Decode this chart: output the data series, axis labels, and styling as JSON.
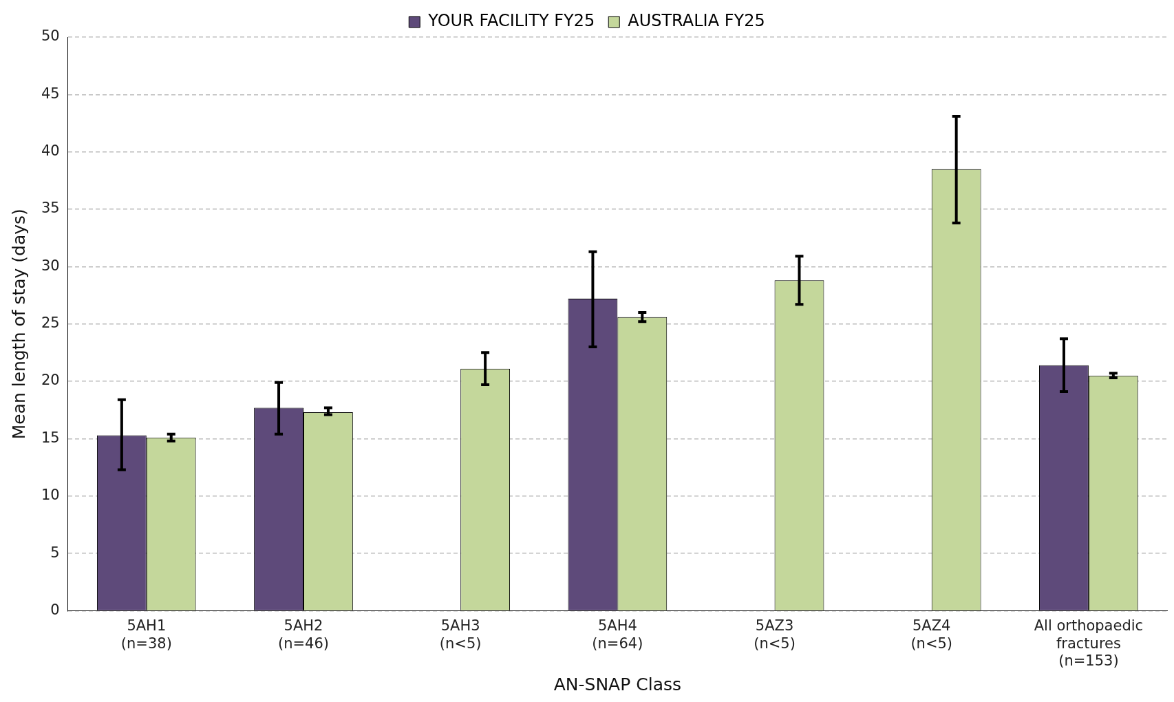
{
  "chart_data": {
    "type": "bar",
    "xlabel": "AN-SNAP Class",
    "ylabel": "Mean length of stay (days)",
    "categories": [
      "5AH1\n(n=38)",
      "5AH2\n(n=46)",
      "5AH3\n(n<5)",
      "5AH4\n(n=64)",
      "5AZ3\n(n<5)",
      "5AZ4\n(n<5)",
      "All orthopaedic\nfractures\n(n=153)"
    ],
    "series": [
      {
        "name": "YOUR FACILITY FY25",
        "color": "#5e4a7a",
        "values": [
          15.3,
          17.7,
          0,
          27.2,
          0,
          0,
          21.4
        ],
        "errors": [
          [
            12.3,
            18.4
          ],
          [
            15.4,
            19.9
          ],
          null,
          [
            23.0,
            31.3
          ],
          null,
          null,
          [
            19.1,
            23.7
          ]
        ]
      },
      {
        "name": "AUSTRALIA FY25",
        "color": "#c4d79b",
        "values": [
          15.1,
          17.3,
          21.1,
          25.6,
          28.8,
          38.5,
          20.5
        ],
        "errors": [
          [
            14.8,
            15.4
          ],
          [
            17.1,
            17.7
          ],
          [
            19.7,
            22.5
          ],
          [
            25.2,
            26.0
          ],
          [
            26.7,
            30.9
          ],
          [
            33.8,
            43.1
          ],
          [
            20.3,
            20.7
          ]
        ]
      }
    ],
    "ylim": [
      0,
      50
    ],
    "yticks": [
      0,
      5,
      10,
      15,
      20,
      25,
      30,
      35,
      40,
      45,
      50
    ],
    "grid": "y",
    "legend": "top"
  }
}
